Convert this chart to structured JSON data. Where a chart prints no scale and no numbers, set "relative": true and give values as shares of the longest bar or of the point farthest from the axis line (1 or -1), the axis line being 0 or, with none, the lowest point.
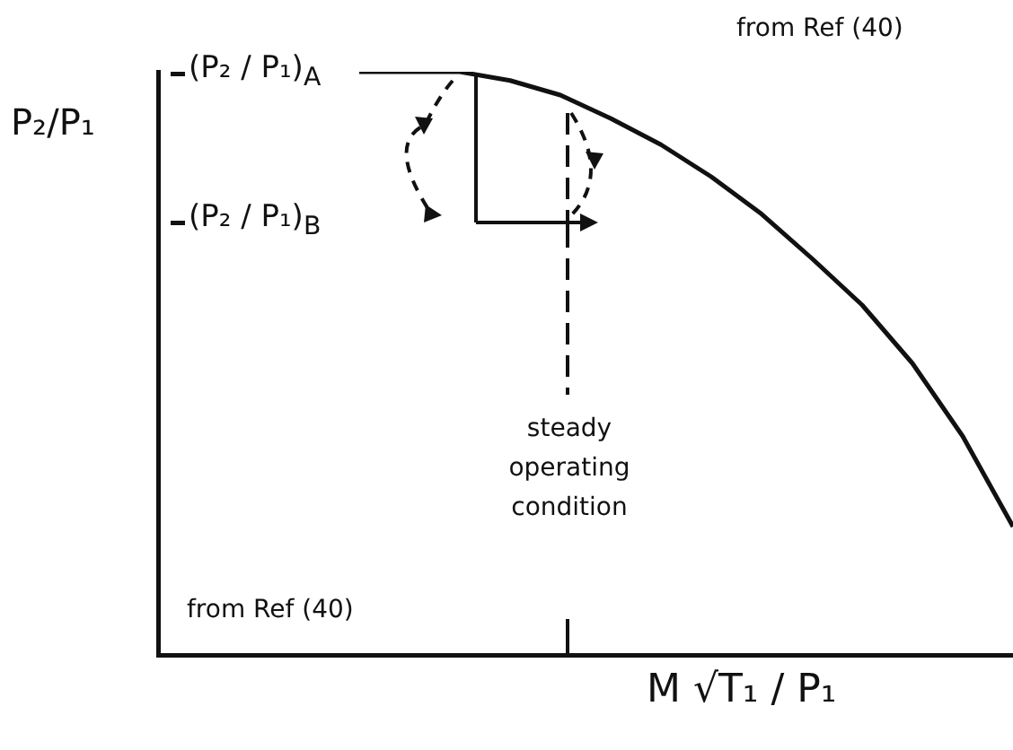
{
  "chart_data": {
    "type": "line",
    "relative": true,
    "ylabel": "P₂/P₁",
    "xlabel": "M √T₁ / P₁",
    "categories": [
      null,
      null,
      null,
      null,
      null,
      null,
      null,
      null,
      null,
      null,
      null,
      null,
      null,
      null,
      null,
      null,
      null,
      null
    ],
    "series": [
      {
        "color": "#111111",
        "values": [
          null,
          null,
          null,
          null,
          1,
          1,
          1,
          0.985,
          0.96,
          0.92,
          0.875,
          0.82,
          0.756,
          0.68,
          0.6,
          0.5,
          0.375,
          0.22
        ]
      }
    ],
    "marker": "none",
    "line_style": "solid",
    "grid": false,
    "legend": false,
    "annotations": [
      "(P₂ / P₁)$_{A}$",
      "(P₂ / P₁)$_{B}$",
      "steady operating condition",
      "from Ref (40)",
      "from Ref (40)"
    ]
  }
}
